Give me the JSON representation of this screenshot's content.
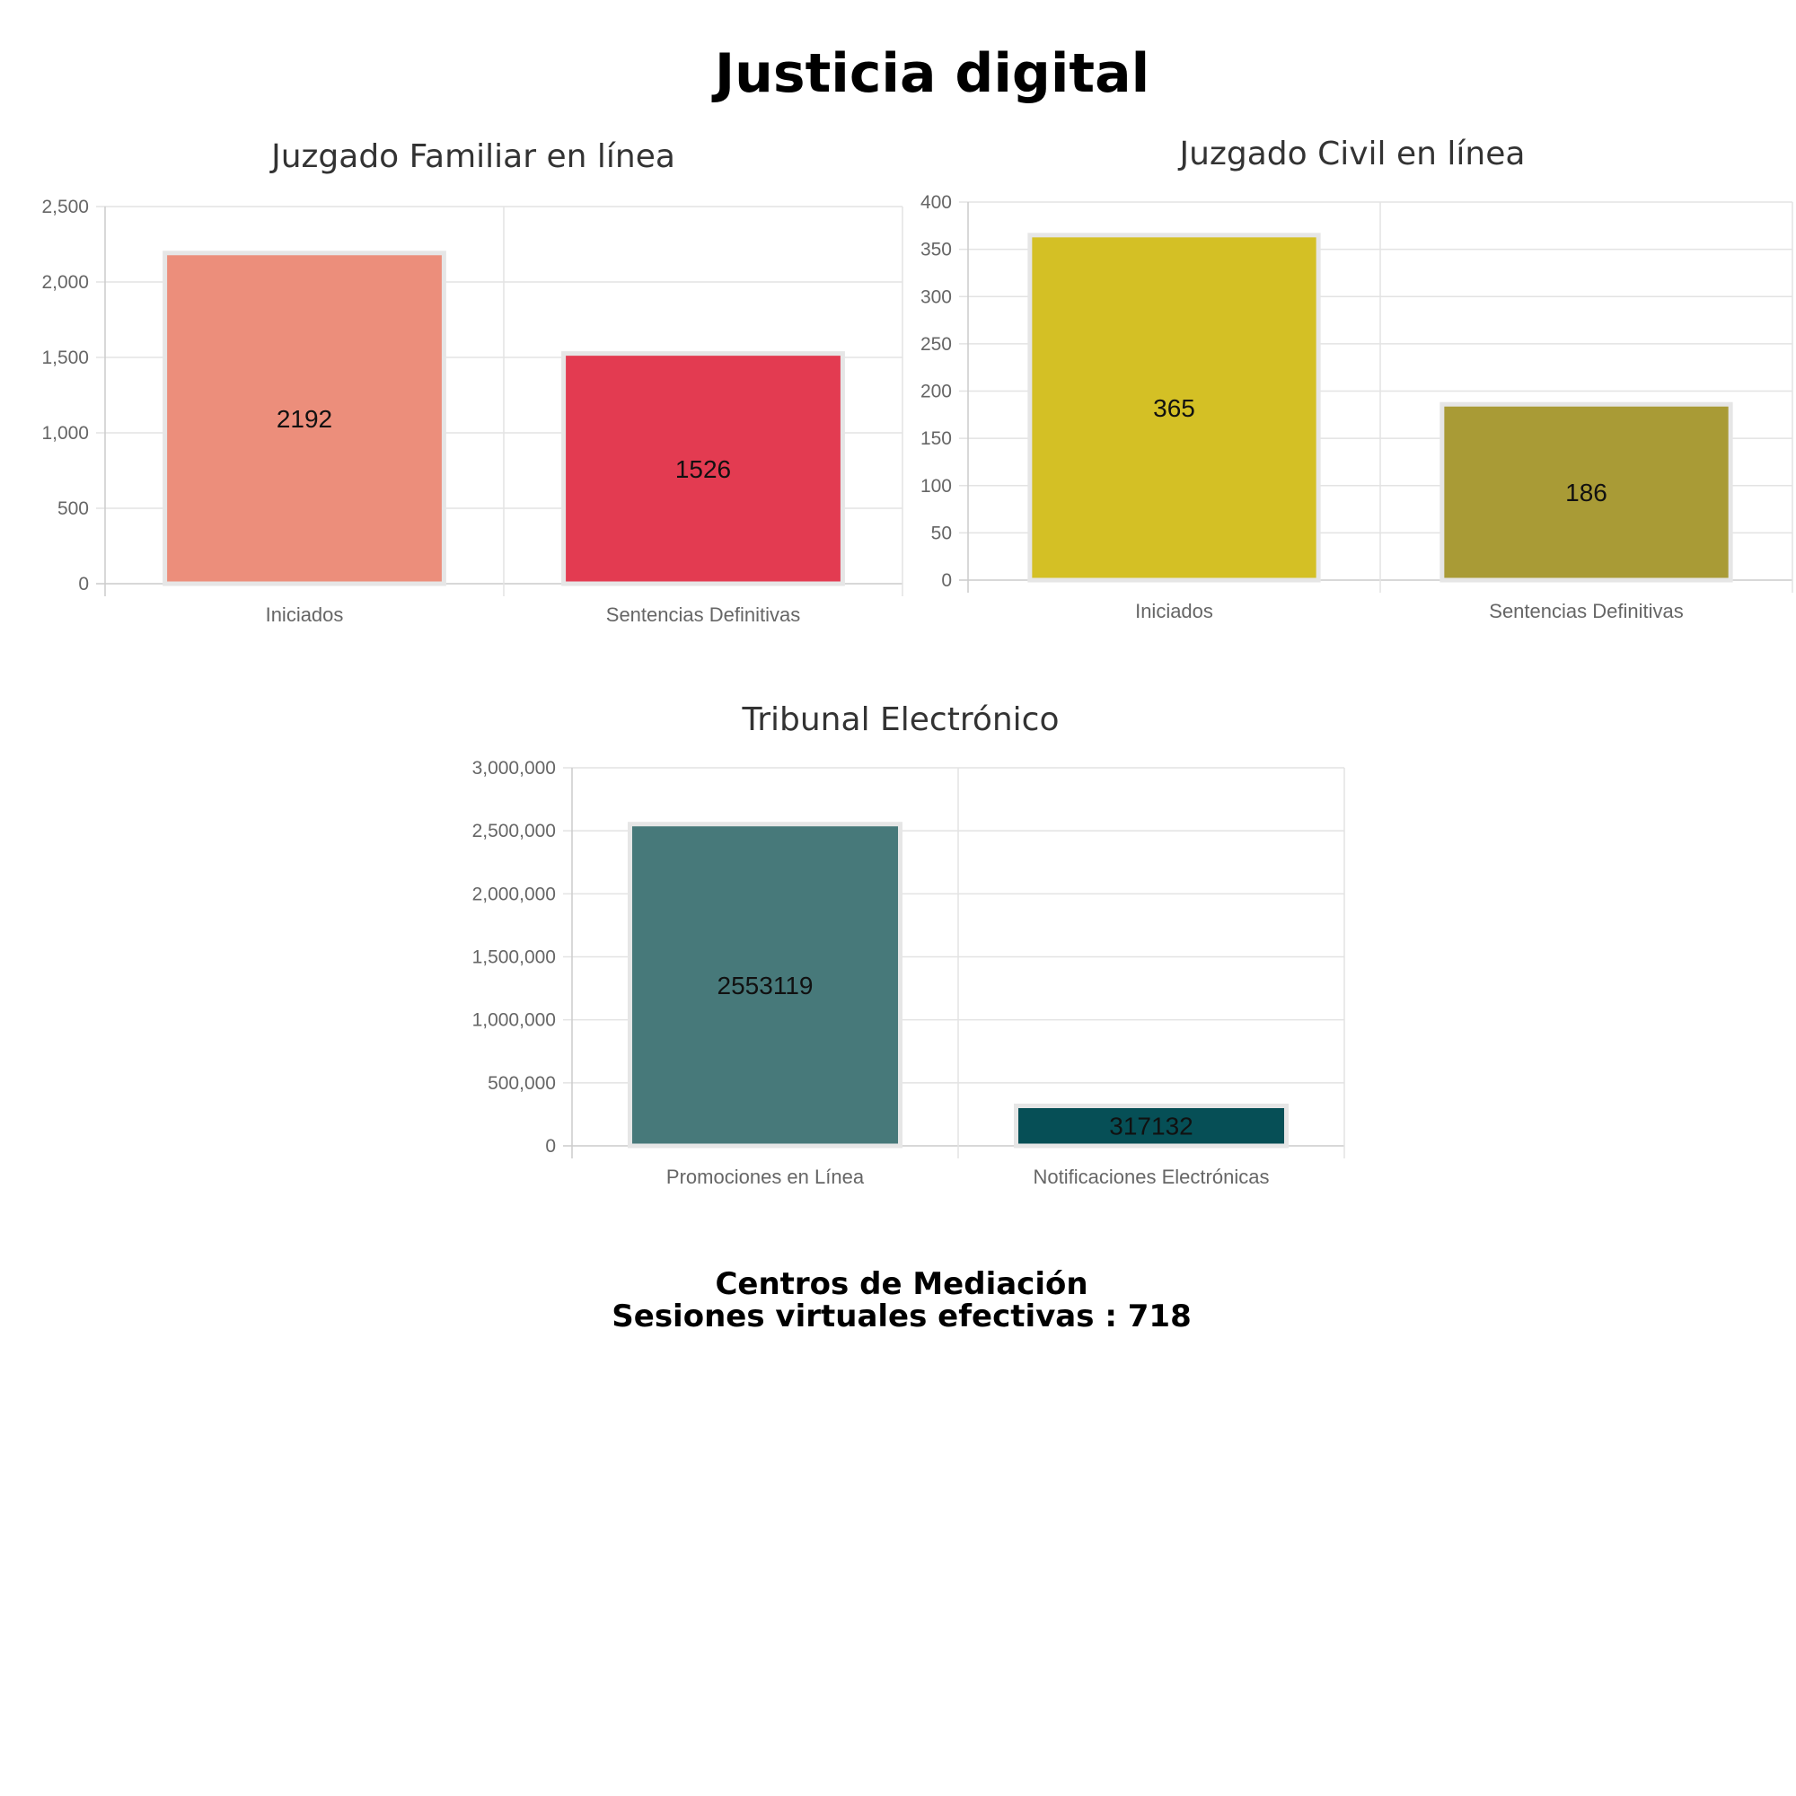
{
  "title": "Justicia digital",
  "chart_data": [
    {
      "type": "bar",
      "title": "Juzgado Familiar en línea",
      "categories": [
        "Iniciados",
        "Sentencias Definitivas"
      ],
      "values": [
        2192,
        1526
      ],
      "colors": [
        "#ec8e7b",
        "#e33b51"
      ],
      "ylim": [
        0,
        2500
      ],
      "yticks": [
        0,
        500,
        1000,
        1500,
        2000,
        2500
      ],
      "ytick_labels": [
        "0",
        "500",
        "1,000",
        "1,500",
        "2,000",
        "2,500"
      ],
      "xlabel": "",
      "ylabel": "",
      "grid": true
    },
    {
      "type": "bar",
      "title": "Juzgado Civil en línea",
      "categories": [
        "Iniciados",
        "Sentencias Definitivas"
      ],
      "values": [
        365,
        186
      ],
      "colors": [
        "#d4c025",
        "#a99b36"
      ],
      "ylim": [
        0,
        400
      ],
      "yticks": [
        0,
        50,
        100,
        150,
        200,
        250,
        300,
        350,
        400
      ],
      "ytick_labels": [
        "0",
        "50",
        "100",
        "150",
        "200",
        "250",
        "300",
        "350",
        "400"
      ],
      "xlabel": "",
      "ylabel": "",
      "grid": true
    },
    {
      "type": "bar",
      "title": "Tribunal Electrónico",
      "categories": [
        "Promociones en Línea",
        "Notificaciones Electrónicas"
      ],
      "values": [
        2553119,
        317132
      ],
      "colors": [
        "#47797a",
        "#064f56"
      ],
      "ylim": [
        0,
        3000000
      ],
      "yticks": [
        0,
        500000,
        1000000,
        1500000,
        2000000,
        2500000,
        3000000
      ],
      "ytick_labels": [
        "0",
        "500,000",
        "1,000,000",
        "1,500,000",
        "2,000,000",
        "2,500,000",
        "3,000,000"
      ],
      "xlabel": "",
      "ylabel": "",
      "grid": true
    }
  ],
  "footer": {
    "line1": "Centros de Mediación",
    "line2": "Sesiones virtuales efectivas : 718"
  }
}
